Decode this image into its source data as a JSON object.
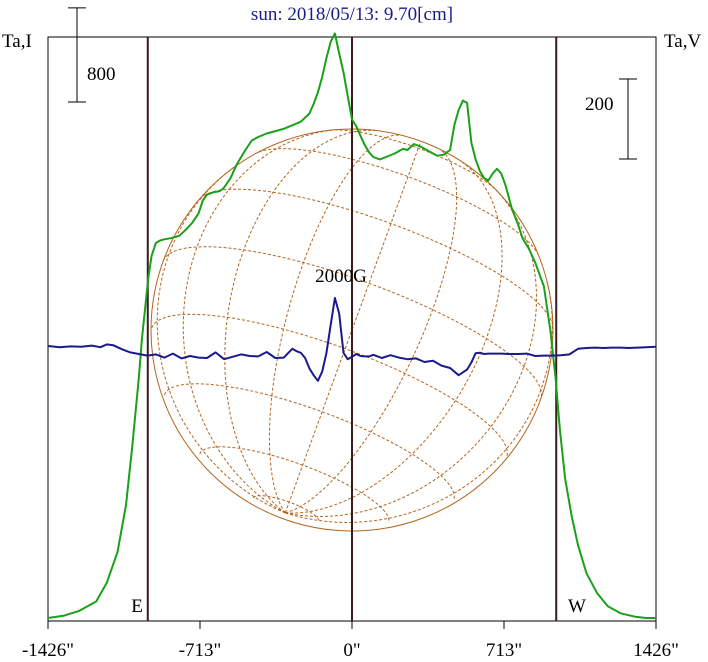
{
  "title": "sun: 2018/05/13: 9.70[cm]",
  "left_axis_label": "Ta,I",
  "right_axis_label": "Ta,V",
  "scale_left_label": "800",
  "scale_right_label": "200",
  "field_label": "2000G",
  "east_label": "E",
  "west_label": "W",
  "colors": {
    "intensity": "#1aa01a",
    "polarization": "#1a1a8c",
    "disk": "#b5651d",
    "frame": "#000000",
    "vertical_lines": "#3a1a1a"
  },
  "chart_data": {
    "type": "line",
    "title": "sun: 2018/05/13: 9.70[cm]",
    "xlabel": "",
    "ylabel_left": "Ta,I",
    "ylabel_right": "Ta,V",
    "xlim": [
      -1426,
      1426
    ],
    "x_ticks": [
      {
        "value": -1426,
        "label": "-1426\""
      },
      {
        "value": -713,
        "label": "-713\""
      },
      {
        "value": 0,
        "label": "0\""
      },
      {
        "value": 713,
        "label": "713\""
      },
      {
        "value": 1426,
        "label": "1426\""
      }
    ],
    "limb_markers": [
      {
        "x": -958,
        "label": "E"
      },
      {
        "x": 958,
        "label": "W"
      }
    ],
    "scale_bars": [
      {
        "axis": "left",
        "value": 800
      },
      {
        "axis": "right",
        "value": 200
      }
    ],
    "series": [
      {
        "name": "I",
        "axis": "left",
        "x": [
          -1426,
          -1350,
          -1280,
          -1200,
          -1150,
          -1100,
          -1060,
          -1030,
          -1000,
          -985,
          -970,
          -955,
          -940,
          -920,
          -900,
          -880,
          -850,
          -810,
          -780,
          -750,
          -720,
          -700,
          -680,
          -650,
          -620,
          -600,
          -570,
          -540,
          -500,
          -470,
          -440,
          -400,
          -360,
          -320,
          -280,
          -240,
          -200,
          -180,
          -160,
          -140,
          -120,
          -100,
          -80,
          -60,
          -40,
          -20,
          0,
          20,
          40,
          60,
          80,
          100,
          130,
          160,
          200,
          240,
          260,
          290,
          320,
          360,
          400,
          430,
          460,
          480,
          500,
          520,
          540,
          560,
          580,
          600,
          620,
          640,
          660,
          680,
          700,
          720,
          750,
          780,
          800,
          830,
          860,
          900,
          930,
          955,
          975,
          1000,
          1030,
          1060,
          1100,
          1150,
          1200,
          1260,
          1330,
          1380,
          1426
        ],
        "y": [
          0,
          20,
          60,
          140,
          300,
          560,
          960,
          1470,
          2040,
          2380,
          2640,
          2900,
          3080,
          3190,
          3210,
          3220,
          3230,
          3250,
          3300,
          3360,
          3440,
          3550,
          3600,
          3620,
          3630,
          3660,
          3740,
          3860,
          3980,
          4060,
          4090,
          4120,
          4140,
          4160,
          4190,
          4220,
          4290,
          4370,
          4470,
          4600,
          4760,
          4900,
          4970,
          4800,
          4640,
          4440,
          4240,
          4180,
          4100,
          4020,
          3960,
          3920,
          3900,
          3920,
          3950,
          3990,
          3980,
          4030,
          4010,
          3970,
          3930,
          3940,
          3980,
          4190,
          4320,
          4400,
          4380,
          4040,
          3900,
          3800,
          3740,
          3720,
          3780,
          3820,
          3780,
          3680,
          3480,
          3340,
          3230,
          3140,
          3020,
          2820,
          2450,
          2040,
          1600,
          1180,
          870,
          620,
          380,
          210,
          100,
          40,
          10,
          0,
          0
        ]
      },
      {
        "name": "V",
        "axis": "right",
        "x": [
          -1426,
          -1370,
          -1320,
          -1270,
          -1220,
          -1180,
          -1150,
          -1120,
          -1080,
          -1040,
          -1000,
          -960,
          -920,
          -880,
          -840,
          -800,
          -760,
          -720,
          -680,
          -640,
          -600,
          -560,
          -520,
          -480,
          -440,
          -400,
          -360,
          -320,
          -280,
          -260,
          -240,
          -220,
          -200,
          -180,
          -160,
          -140,
          -120,
          -100,
          -80,
          -60,
          -40,
          -20,
          0,
          20,
          40,
          60,
          80,
          100,
          140,
          180,
          220,
          260,
          300,
          340,
          380,
          420,
          460,
          500,
          540,
          560,
          580,
          600,
          620,
          640,
          660,
          700,
          740,
          780,
          820,
          860,
          900,
          940,
          980,
          1020,
          1060,
          1100,
          1140,
          1180,
          1220,
          1260,
          1300,
          1340,
          1380,
          1426
        ],
        "y": [
          0,
          -3,
          -1,
          -2,
          1,
          -3,
          4,
          2,
          -8,
          -16,
          -20,
          -24,
          -21,
          -29,
          -19,
          -31,
          -25,
          -29,
          -30,
          -16,
          -33,
          -27,
          -21,
          -25,
          -26,
          -15,
          -30,
          -29,
          -7,
          -13,
          -17,
          -30,
          -56,
          -73,
          -87,
          -64,
          -18,
          53,
          120,
          81,
          -17,
          -33,
          -27,
          -20,
          -25,
          -26,
          -26,
          -22,
          -30,
          -23,
          -29,
          -33,
          -31,
          -40,
          -37,
          -49,
          -55,
          -73,
          -59,
          -41,
          -18,
          -17,
          -20,
          -19,
          -19,
          -19,
          -20,
          -20,
          -19,
          -25,
          -24,
          -24,
          -23,
          -21,
          -7,
          -5,
          -4,
          -5,
          -4,
          -4,
          -5,
          -4,
          -3,
          -2
        ]
      }
    ]
  }
}
